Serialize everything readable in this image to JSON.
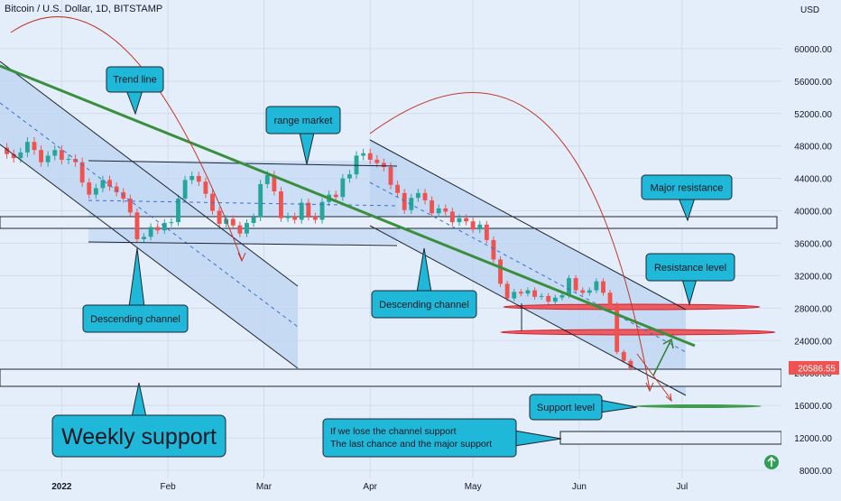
{
  "title": "Bitcoin / U.S. Dollar, 1D, BITSTAMP",
  "currency": "USD",
  "chart_data": {
    "type": "candlestick",
    "price_axis": {
      "ticks": [
        "60000.00",
        "56000.00",
        "52000.00",
        "48000.00",
        "44000.00",
        "40000.00",
        "36000.00",
        "32000.00",
        "28000.00",
        "24000.00",
        "20000.00",
        "16000.00",
        "12000.00",
        "8000.00"
      ],
      "last_price_label": "20586.55",
      "last_price": 20586.55,
      "ylim": [
        7000,
        66000
      ]
    },
    "time_axis": {
      "ticks": [
        {
          "label": "2022",
          "day": 0
        },
        {
          "label": "Feb",
          "day": 31
        },
        {
          "label": "Mar",
          "day": 59
        },
        {
          "label": "Apr",
          "day": 90
        },
        {
          "label": "May",
          "day": 120
        },
        {
          "label": "Jun",
          "day": 151
        },
        {
          "label": "Jul",
          "day": 181
        }
      ],
      "xlim_days": [
        -18,
        210
      ]
    },
    "close_series": [
      [
        -18,
        47800
      ],
      [
        -16,
        47000
      ],
      [
        -14,
        46500
      ],
      [
        -12,
        47200
      ],
      [
        -10,
        48500
      ],
      [
        -8,
        47500
      ],
      [
        -6,
        46000
      ],
      [
        -4,
        46800
      ],
      [
        -2,
        47500
      ],
      [
        0,
        46300
      ],
      [
        2,
        46400
      ],
      [
        4,
        46000
      ],
      [
        6,
        43500
      ],
      [
        8,
        42000
      ],
      [
        10,
        42800
      ],
      [
        12,
        43800
      ],
      [
        14,
        43000
      ],
      [
        16,
        42300
      ],
      [
        18,
        41500
      ],
      [
        20,
        39800
      ],
      [
        22,
        36500
      ],
      [
        24,
        36800
      ],
      [
        26,
        38000
      ],
      [
        28,
        37600
      ],
      [
        30,
        38500
      ],
      [
        32,
        38600
      ],
      [
        34,
        41500
      ],
      [
        36,
        43800
      ],
      [
        38,
        44300
      ],
      [
        40,
        43600
      ],
      [
        42,
        42100
      ],
      [
        44,
        40000
      ],
      [
        46,
        38400
      ],
      [
        48,
        39000
      ],
      [
        50,
        38200
      ],
      [
        52,
        37200
      ],
      [
        54,
        38500
      ],
      [
        56,
        39200
      ],
      [
        58,
        43300
      ],
      [
        60,
        44400
      ],
      [
        62,
        42400
      ],
      [
        64,
        39100
      ],
      [
        66,
        39300
      ],
      [
        68,
        38900
      ],
      [
        70,
        41000
      ],
      [
        72,
        39300
      ],
      [
        74,
        38900
      ],
      [
        76,
        41100
      ],
      [
        78,
        42000
      ],
      [
        80,
        41700
      ],
      [
        82,
        44000
      ],
      [
        84,
        44500
      ],
      [
        86,
        46800
      ],
      [
        88,
        47100
      ],
      [
        90,
        46300
      ],
      [
        92,
        45900
      ],
      [
        94,
        45400
      ],
      [
        96,
        43200
      ],
      [
        98,
        42200
      ],
      [
        100,
        40100
      ],
      [
        102,
        41600
      ],
      [
        104,
        42200
      ],
      [
        106,
        41300
      ],
      [
        108,
        39700
      ],
      [
        110,
        40300
      ],
      [
        112,
        39900
      ],
      [
        114,
        38600
      ],
      [
        116,
        39100
      ],
      [
        118,
        38700
      ],
      [
        120,
        37700
      ],
      [
        122,
        38300
      ],
      [
        124,
        36400
      ],
      [
        126,
        34000
      ],
      [
        128,
        31000
      ],
      [
        130,
        29200
      ],
      [
        132,
        30000
      ],
      [
        134,
        29800
      ],
      [
        136,
        30200
      ],
      [
        138,
        29400
      ],
      [
        140,
        29500
      ],
      [
        142,
        28800
      ],
      [
        144,
        29300
      ],
      [
        146,
        29600
      ],
      [
        148,
        31700
      ],
      [
        150,
        30200
      ],
      [
        152,
        29900
      ],
      [
        154,
        30200
      ],
      [
        156,
        31300
      ],
      [
        158,
        29900
      ],
      [
        160,
        28400
      ],
      [
        162,
        22600
      ],
      [
        164,
        21500
      ],
      [
        166,
        20586
      ]
    ],
    "annotations": [
      "Trend line",
      "range market",
      "Major resistance",
      "Resistance level",
      "Descending channel",
      "Descending channel",
      "Support level",
      "Weekly support",
      "If we lose the channel support",
      "The last chance and the major support"
    ]
  }
}
